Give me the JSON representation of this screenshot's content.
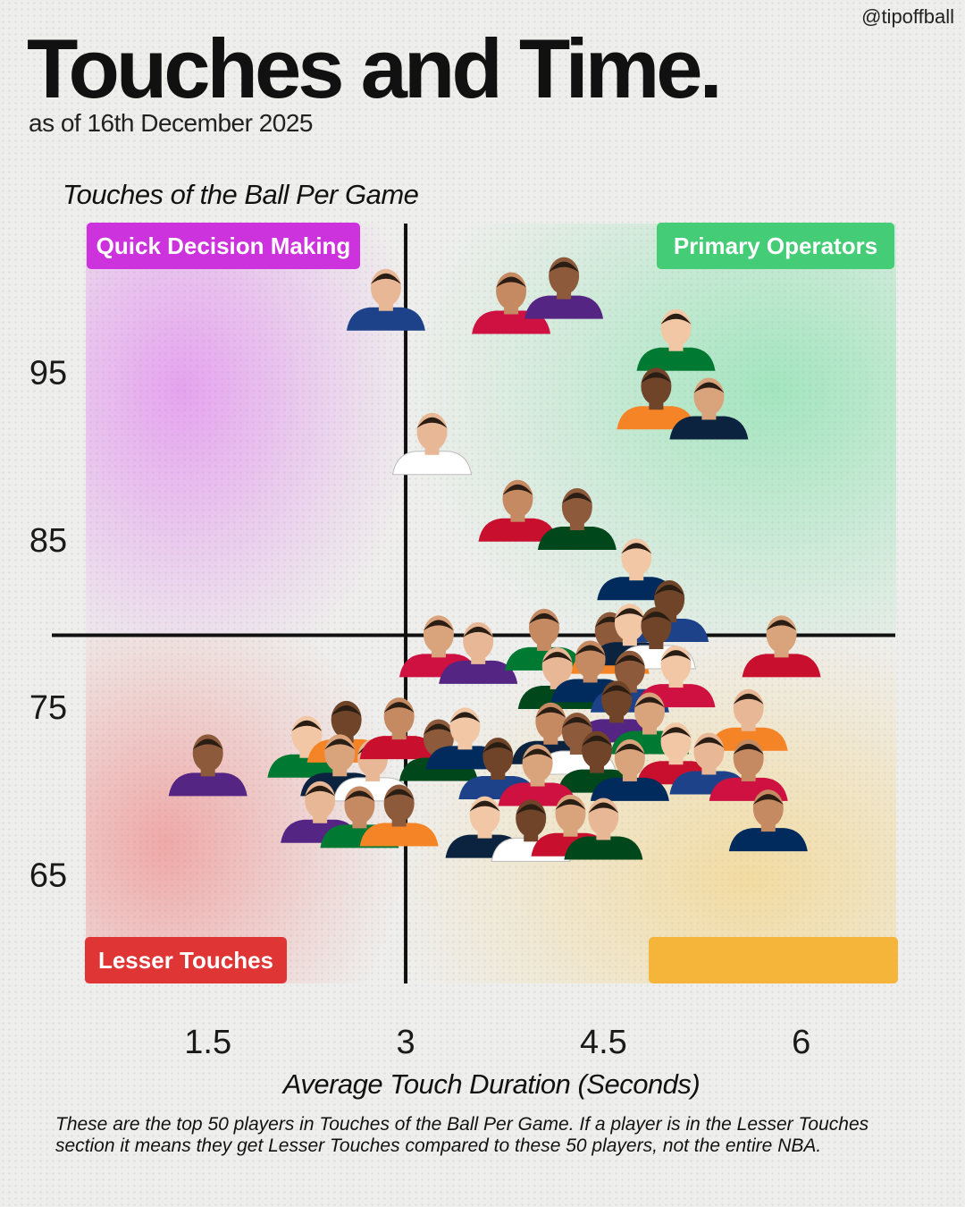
{
  "handle": "@tipoffball",
  "title": "Touches and Time.",
  "subtitle": "as of 16th December 2025",
  "chart_data": {
    "type": "scatter",
    "title": "Touches and Time.",
    "subtitle": "as of 16th December 2025",
    "ylabel": "Touches of the Ball Per Game",
    "xlabel": "Average Touch Duration (Seconds)",
    "x_ticks": [
      {
        "value": 1.5,
        "label": "1.5"
      },
      {
        "value": 3,
        "label": "3"
      },
      {
        "value": 4.5,
        "label": "4.5"
      },
      {
        "value": 6,
        "label": "6"
      }
    ],
    "y_ticks": [
      {
        "value": 95,
        "label": "95"
      },
      {
        "value": 85,
        "label": "85"
      },
      {
        "value": 75,
        "label": "75"
      },
      {
        "value": 65,
        "label": "65"
      }
    ],
    "xlim": [
      0.35,
      6.7
    ],
    "ylim": [
      58.5,
      104
    ],
    "divider": {
      "x": 3.0,
      "y": 79.3
    },
    "grid": false,
    "quadrants": [
      {
        "label": "Quick Decision Making",
        "position": "top-left",
        "color": "#cc33dd",
        "glow": "#dd66f0"
      },
      {
        "label": "Primary Operators",
        "position": "top-right",
        "color": "#44cc77",
        "glow": "#66dd99"
      },
      {
        "label": "Lesser Touches",
        "position": "bottom-left",
        "color": "#e03535",
        "glow": "#ee7070"
      },
      {
        "label": "",
        "position": "bottom-right",
        "color": "#f5b53a",
        "glow": "#f5cc66"
      }
    ],
    "points": [
      {
        "x": 2.85,
        "y": 99.1
      },
      {
        "x": 3.8,
        "y": 98.9
      },
      {
        "x": 4.2,
        "y": 99.8
      },
      {
        "x": 5.05,
        "y": 96.7
      },
      {
        "x": 4.9,
        "y": 93.2
      },
      {
        "x": 5.3,
        "y": 92.6
      },
      {
        "x": 3.2,
        "y": 90.5
      },
      {
        "x": 3.85,
        "y": 86.5
      },
      {
        "x": 4.3,
        "y": 86.0
      },
      {
        "x": 4.75,
        "y": 83.0
      },
      {
        "x": 5.0,
        "y": 80.5
      },
      {
        "x": 3.25,
        "y": 78.4
      },
      {
        "x": 3.55,
        "y": 78.0
      },
      {
        "x": 4.05,
        "y": 78.8
      },
      {
        "x": 4.55,
        "y": 78.6
      },
      {
        "x": 4.7,
        "y": 79.1
      },
      {
        "x": 4.9,
        "y": 78.9
      },
      {
        "x": 5.85,
        "y": 78.4
      },
      {
        "x": 4.15,
        "y": 76.5
      },
      {
        "x": 4.4,
        "y": 76.9
      },
      {
        "x": 4.7,
        "y": 76.3
      },
      {
        "x": 5.05,
        "y": 76.6
      },
      {
        "x": 4.6,
        "y": 74.5
      },
      {
        "x": 4.85,
        "y": 73.8
      },
      {
        "x": 5.6,
        "y": 74.0
      },
      {
        "x": 4.1,
        "y": 73.2
      },
      {
        "x": 4.3,
        "y": 72.6
      },
      {
        "x": 5.05,
        "y": 72.0
      },
      {
        "x": 4.45,
        "y": 71.5
      },
      {
        "x": 4.7,
        "y": 71.0
      },
      {
        "x": 5.3,
        "y": 71.4
      },
      {
        "x": 5.6,
        "y": 71.0
      },
      {
        "x": 1.5,
        "y": 71.3
      },
      {
        "x": 2.25,
        "y": 72.4
      },
      {
        "x": 2.55,
        "y": 73.3
      },
      {
        "x": 2.5,
        "y": 71.3
      },
      {
        "x": 2.75,
        "y": 71.0
      },
      {
        "x": 2.95,
        "y": 73.5
      },
      {
        "x": 3.25,
        "y": 72.2
      },
      {
        "x": 3.45,
        "y": 72.9
      },
      {
        "x": 3.7,
        "y": 71.1
      },
      {
        "x": 4.0,
        "y": 70.7
      },
      {
        "x": 2.35,
        "y": 68.5
      },
      {
        "x": 2.65,
        "y": 68.2
      },
      {
        "x": 2.95,
        "y": 68.3
      },
      {
        "x": 3.6,
        "y": 67.6
      },
      {
        "x": 3.95,
        "y": 67.4
      },
      {
        "x": 4.25,
        "y": 67.7
      },
      {
        "x": 4.5,
        "y": 67.5
      },
      {
        "x": 5.75,
        "y": 68.0
      }
    ]
  },
  "footnote": "These are the top 50 players in Touches of the Ball Per Game. If a player is in the Lesser Touches section it means they get Lesser Touches compared to these 50 players, not the entire NBA."
}
